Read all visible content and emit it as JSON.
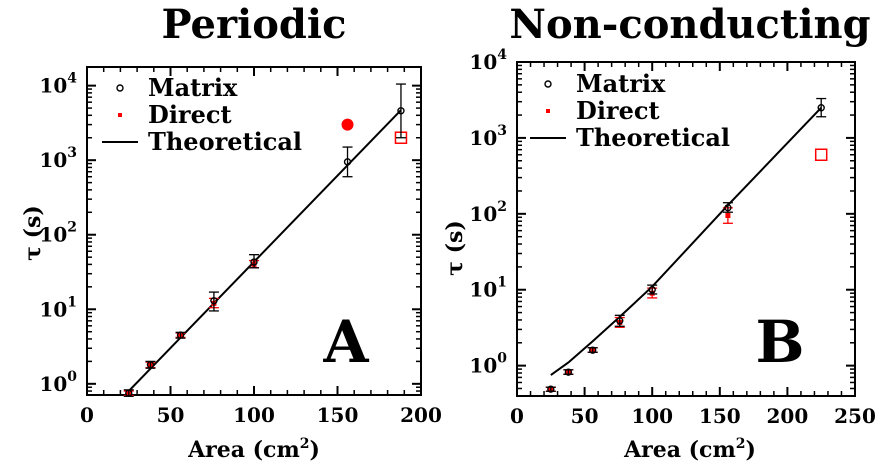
{
  "colors": {
    "matrix": "#000000",
    "direct": "#ff0000",
    "theory": "#000000"
  },
  "chart_data": [
    {
      "type": "scatter",
      "title": "Periodic",
      "panel_label": "A",
      "xlabel": "Area (cm",
      "xlabel_sup": "2",
      "xlabel_close": ")",
      "ylabel": "τ (s)",
      "xlim": [
        0,
        200
      ],
      "ylim_log10": [
        -0.15,
        4.25
      ],
      "y_scale": "log",
      "xticks": [
        0,
        50,
        100,
        150,
        200
      ],
      "yticks": [
        0,
        1,
        2,
        3,
        4
      ],
      "ytick_base": "10",
      "legend": [
        "Matrix",
        "Direct",
        "Theoretical"
      ],
      "series": [
        {
          "name": "Matrix",
          "points": [
            {
              "x": 25,
              "y": 0.75,
              "lo": 0.68,
              "hi": 0.83
            },
            {
              "x": 38,
              "y": 1.8,
              "lo": 1.62,
              "hi": 2.0
            },
            {
              "x": 56,
              "y": 4.5,
              "lo": 4.1,
              "hi": 4.9
            },
            {
              "x": 76,
              "y": 13,
              "lo": 9.5,
              "hi": 17
            },
            {
              "x": 100,
              "y": 43,
              "lo": 36,
              "hi": 54
            },
            {
              "x": 156,
              "y": 950,
              "lo": 600,
              "hi": 1500
            },
            {
              "x": 188,
              "y": 4600,
              "lo": 2000,
              "hi": 10500
            }
          ]
        },
        {
          "name": "Direct",
          "points": [
            {
              "x": 25,
              "y": 0.75,
              "lo": 0.7,
              "hi": 0.8
            },
            {
              "x": 38,
              "y": 1.8,
              "lo": 1.65,
              "hi": 1.95
            },
            {
              "x": 56,
              "y": 4.5,
              "lo": 4.2,
              "hi": 4.8
            },
            {
              "x": 76,
              "y": 12,
              "lo": 10.5,
              "hi": 14
            },
            {
              "x": 100,
              "y": 40,
              "lo": 36,
              "hi": 45
            }
          ],
          "filled_marker": {
            "x": 156,
            "y": 3000
          },
          "open_marker": {
            "x": 188,
            "y": 2000
          }
        },
        {
          "name": "Theoretical",
          "line": [
            [
              25,
              0.8
            ],
            [
              188,
              4700
            ]
          ]
        }
      ]
    },
    {
      "type": "scatter",
      "title": "Non-conducting",
      "panel_label": "B",
      "xlabel": "Area (cm",
      "xlabel_sup": "2",
      "xlabel_close": ")",
      "ylabel": "τ (s)",
      "xlim": [
        0,
        250
      ],
      "ylim_log10": [
        -0.4,
        4.0
      ],
      "y_scale": "log",
      "xticks": [
        0,
        50,
        100,
        150,
        200,
        250
      ],
      "yticks": [
        0,
        1,
        2,
        3,
        4
      ],
      "ytick_base": "10",
      "legend": [
        "Matrix",
        "Direct",
        "Theoretical"
      ],
      "series": [
        {
          "name": "Matrix",
          "points": [
            {
              "x": 25,
              "y": 0.49,
              "lo": 0.46,
              "hi": 0.52
            },
            {
              "x": 38,
              "y": 0.82,
              "lo": 0.77,
              "hi": 0.88
            },
            {
              "x": 56,
              "y": 1.6,
              "lo": 1.5,
              "hi": 1.72
            },
            {
              "x": 76,
              "y": 3.9,
              "lo": 3.3,
              "hi": 4.6
            },
            {
              "x": 100,
              "y": 10,
              "lo": 8.8,
              "hi": 11.5
            },
            {
              "x": 156,
              "y": 120,
              "lo": 105,
              "hi": 140
            },
            {
              "x": 225,
              "y": 2500,
              "lo": 1900,
              "hi": 3300
            }
          ]
        },
        {
          "name": "Direct",
          "points": [
            {
              "x": 25,
              "y": 0.49,
              "lo": 0.46,
              "hi": 0.52
            },
            {
              "x": 38,
              "y": 0.82,
              "lo": 0.77,
              "hi": 0.88
            },
            {
              "x": 56,
              "y": 1.6,
              "lo": 1.5,
              "hi": 1.72
            },
            {
              "x": 76,
              "y": 3.7,
              "lo": 3.2,
              "hi": 4.3
            },
            {
              "x": 100,
              "y": 9,
              "lo": 7.8,
              "hi": 10.5
            },
            {
              "x": 156,
              "y": 95,
              "lo": 75,
              "hi": 120
            }
          ],
          "open_marker": {
            "x": 225,
            "y": 600
          }
        },
        {
          "name": "Theoretical",
          "line": [
            [
              25,
              0.75
            ],
            [
              38,
              1.1
            ],
            [
              56,
              2.1
            ],
            [
              76,
              4.4
            ],
            [
              100,
              11
            ],
            [
              156,
              130
            ],
            [
              225,
              2500
            ]
          ]
        }
      ]
    }
  ]
}
